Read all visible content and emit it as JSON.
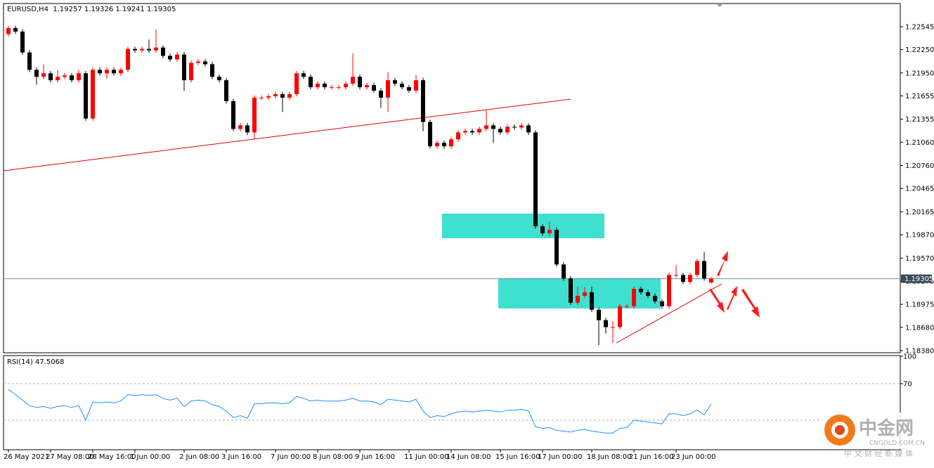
{
  "chart_data": {
    "type": "candlestick",
    "title": "EURUSD,H4  1.19257 1.19326 1.19241 1.19305",
    "up_color": "#ff0000",
    "down_color": "#000000",
    "open": [
      1.2245,
      1.22527,
      1.22482,
      1.22214,
      1.21991,
      1.21901,
      1.21946,
      1.21857,
      1.21901,
      1.21919,
      1.21857,
      1.21946,
      1.21365,
      1.21991,
      1.21946,
      1.21991,
      1.21946,
      1.21991,
      1.22259,
      1.22241,
      1.22259,
      1.22241,
      1.22277,
      1.2217,
      1.22125,
      1.22187,
      1.21857,
      1.2208,
      1.22098,
      1.22062,
      1.21901,
      1.21857,
      1.21588,
      1.21231,
      1.21276,
      1.21186,
      1.21633,
      1.21633,
      1.21651,
      1.21678,
      1.21633,
      1.21678,
      1.21946,
      1.21901,
      1.21767,
      1.21812,
      1.21767,
      1.21767,
      1.21767,
      1.21812,
      1.21901,
      1.21767,
      1.21794,
      1.21723,
      1.21633,
      1.21857,
      1.21812,
      1.21767,
      1.21723,
      1.21857,
      1.2132,
      1.21007,
      1.21052,
      1.21007,
      1.21097,
      1.21186,
      1.21204,
      1.21186,
      1.21231,
      1.21276,
      1.21231,
      1.21186,
      1.21258,
      1.21249,
      1.21276,
      1.21186,
      1.19979,
      1.1989,
      1.19934,
      1.19488,
      1.19309,
      1.18996,
      1.19085,
      1.1913,
      1.18906,
      1.18772,
      1.18683,
      1.18683,
      1.18951,
      1.18951,
      1.19175,
      1.1913,
      1.19085,
      1.19014,
      1.18951,
      1.19353,
      1.19353,
      1.19264,
      1.19353,
      1.19532,
      1.19257
    ],
    "high": [
      1.22557,
      1.22557,
      1.22512,
      1.22244,
      1.22021,
      1.2206,
      1.21976,
      1.2199,
      1.21949,
      1.21949,
      1.2199,
      1.21976,
      1.22021,
      1.22021,
      1.22021,
      1.22021,
      1.22021,
      1.22289,
      1.22289,
      1.22289,
      1.2238,
      1.2251,
      1.22307,
      1.222,
      1.22217,
      1.22217,
      1.2211,
      1.22128,
      1.22128,
      1.22092,
      1.21931,
      1.21887,
      1.21618,
      1.21306,
      1.21306,
      1.21663,
      1.21663,
      1.21681,
      1.21708,
      1.21708,
      1.21708,
      1.21976,
      1.21976,
      1.21931,
      1.21842,
      1.21842,
      1.21797,
      1.21797,
      1.21842,
      1.222,
      1.21931,
      1.21824,
      1.21824,
      1.21753,
      1.2196,
      1.21887,
      1.21842,
      1.21797,
      1.2192,
      1.21887,
      1.2135,
      1.21082,
      1.21082,
      1.21127,
      1.21216,
      1.21234,
      1.21234,
      1.21261,
      1.2148,
      1.21306,
      1.21261,
      1.21288,
      1.21288,
      1.21306,
      1.21306,
      1.21216,
      1.20009,
      1.2004,
      1.19964,
      1.19518,
      1.19339,
      1.192,
      1.192,
      1.192,
      1.18936,
      1.18802,
      1.1876,
      1.18981,
      1.18981,
      1.19205,
      1.19205,
      1.1916,
      1.19115,
      1.19044,
      1.19383,
      1.1948,
      1.19383,
      1.19383,
      1.19562,
      1.1965,
      1.19326
    ],
    "low": [
      1.2242,
      1.22452,
      1.22184,
      1.21961,
      1.21801,
      1.21871,
      1.21827,
      1.21827,
      1.21871,
      1.21827,
      1.21827,
      1.21335,
      1.21335,
      1.21916,
      1.2188,
      1.21916,
      1.21916,
      1.21961,
      1.22211,
      1.22211,
      1.22211,
      1.22211,
      1.2214,
      1.22095,
      1.22095,
      1.2172,
      1.21827,
      1.2205,
      1.22032,
      1.21871,
      1.21827,
      1.21558,
      1.21201,
      1.21201,
      1.2115,
      1.211,
      1.21603,
      1.21603,
      1.21621,
      1.2145,
      1.21603,
      1.21648,
      1.21871,
      1.21737,
      1.21737,
      1.21737,
      1.21737,
      1.21737,
      1.21737,
      1.21782,
      1.21737,
      1.21737,
      1.21693,
      1.215,
      1.2145,
      1.21782,
      1.21737,
      1.21693,
      1.21693,
      1.212,
      1.20977,
      1.20977,
      1.20977,
      1.20977,
      1.21067,
      1.21156,
      1.21156,
      1.21156,
      1.21201,
      1.2105,
      1.21156,
      1.21156,
      1.21219,
      1.21219,
      1.21156,
      1.19949,
      1.1986,
      1.1986,
      1.19458,
      1.19279,
      1.18966,
      1.18966,
      1.19055,
      1.18876,
      1.1845,
      1.186,
      1.1848,
      1.18653,
      1.18921,
      1.18921,
      1.191,
      1.19055,
      1.18984,
      1.18921,
      1.18921,
      1.19323,
      1.19234,
      1.19234,
      1.19323,
      1.19279,
      1.19241
    ],
    "close": [
      1.22527,
      1.22482,
      1.22214,
      1.21991,
      1.21901,
      1.21946,
      1.21857,
      1.21901,
      1.21919,
      1.21857,
      1.21946,
      1.21365,
      1.21991,
      1.21946,
      1.21991,
      1.21946,
      1.21991,
      1.22259,
      1.22241,
      1.22259,
      1.22241,
      1.22277,
      1.2217,
      1.22125,
      1.22187,
      1.21857,
      1.2208,
      1.22098,
      1.22062,
      1.21901,
      1.21857,
      1.21588,
      1.21231,
      1.21276,
      1.21186,
      1.21633,
      1.21633,
      1.21651,
      1.21678,
      1.21633,
      1.21678,
      1.21946,
      1.21901,
      1.21767,
      1.21812,
      1.21767,
      1.21767,
      1.21767,
      1.21812,
      1.21901,
      1.21767,
      1.21794,
      1.21723,
      1.21633,
      1.21857,
      1.21812,
      1.21767,
      1.21723,
      1.21857,
      1.2132,
      1.21007,
      1.21052,
      1.21007,
      1.21097,
      1.21186,
      1.21204,
      1.21186,
      1.21231,
      1.21276,
      1.21231,
      1.21186,
      1.21258,
      1.21249,
      1.21276,
      1.21186,
      1.19979,
      1.1989,
      1.19934,
      1.19488,
      1.19309,
      1.18996,
      1.19085,
      1.1913,
      1.18906,
      1.18772,
      1.18683,
      1.18683,
      1.18951,
      1.18951,
      1.19175,
      1.1913,
      1.19085,
      1.19014,
      1.18951,
      1.19353,
      1.19353,
      1.19264,
      1.19353,
      1.19532,
      1.19309,
      1.19305
    ],
    "xticks": [
      {
        "value": 0,
        "label": "26 May 2021"
      },
      {
        "value": 6,
        "label": "27 May 08:00"
      },
      {
        "value": 12,
        "label": "28 May 16:00"
      },
      {
        "value": 18,
        "label": "1 Jun 00:00"
      },
      {
        "value": 25,
        "label": "2 Jun 08:00"
      },
      {
        "value": 31,
        "label": "3 Jun 16:00"
      },
      {
        "value": 38,
        "label": "7 Jun 00:00"
      },
      {
        "value": 44,
        "label": "8 Jun 08:00"
      },
      {
        "value": 50,
        "label": "9 Jun 16:00"
      },
      {
        "value": 57,
        "label": "11 Jun 00:00"
      },
      {
        "value": 63,
        "label": "14 Jun 08:00"
      },
      {
        "value": 70,
        "label": "15 Jun 16:00"
      },
      {
        "value": 76,
        "label": "17 Jun 00:00"
      },
      {
        "value": 83,
        "label": "18 Jun 08:00"
      },
      {
        "value": 89,
        "label": "21 Jun 16:00"
      },
      {
        "value": 95,
        "label": "23 Jun 00:00"
      }
    ],
    "ylim": [
      1.18353,
      1.22843
    ],
    "yticks": [
      {
        "value": 1.22545,
        "label": "1.22545"
      },
      {
        "value": 1.2225,
        "label": "1.22250"
      },
      {
        "value": 1.2195,
        "label": "1.21950"
      },
      {
        "value": 1.21655,
        "label": "1.21655"
      },
      {
        "value": 1.21355,
        "label": "1.21355"
      },
      {
        "value": 1.2106,
        "label": "1.21060"
      },
      {
        "value": 1.2076,
        "label": "1.20760"
      },
      {
        "value": 1.20465,
        "label": "1.20465"
      },
      {
        "value": 1.20165,
        "label": "1.20165"
      },
      {
        "value": 1.1987,
        "label": "1.19870"
      },
      {
        "value": 1.1957,
        "label": "1.19570"
      },
      {
        "value": 1.19275,
        "label": "1.19275"
      },
      {
        "value": 1.18975,
        "label": "1.18975"
      },
      {
        "value": 1.1868,
        "label": "1.18680"
      },
      {
        "value": 1.1838,
        "label": "1.18380"
      }
    ],
    "current_price": 1.19305,
    "rsi": {
      "label": "RSI(14) 47.5068",
      "color": "#1e90ff",
      "values": [
        64,
        58,
        52,
        46,
        44,
        45,
        43,
        45,
        46,
        44,
        46,
        30,
        50,
        49,
        50,
        49,
        51,
        58,
        57,
        58,
        57,
        58,
        54,
        52,
        54,
        45,
        51,
        52,
        51,
        47,
        45,
        40,
        33,
        35,
        32,
        48,
        48,
        49,
        49,
        48,
        49,
        56,
        54,
        51,
        52,
        51,
        51,
        51,
        52,
        54,
        51,
        51,
        50,
        47,
        53,
        52,
        51,
        50,
        53,
        40,
        33,
        35,
        34,
        37,
        39,
        40,
        39,
        40,
        41,
        40,
        39,
        41,
        41,
        42,
        40,
        23,
        21,
        22,
        19,
        18,
        17,
        19,
        20,
        18,
        17,
        16,
        16,
        21,
        22,
        30,
        29,
        28,
        27,
        26,
        37,
        37,
        35,
        37,
        41,
        36,
        47.5068
      ],
      "ylim": [
        0,
        100
      ],
      "yticks": [
        100,
        70,
        30
      ]
    }
  },
  "watermark": {
    "name": "中金网",
    "site": "CNGOLD.COM.CN",
    "slogan": "中 文 财 经 新 媒 体"
  }
}
